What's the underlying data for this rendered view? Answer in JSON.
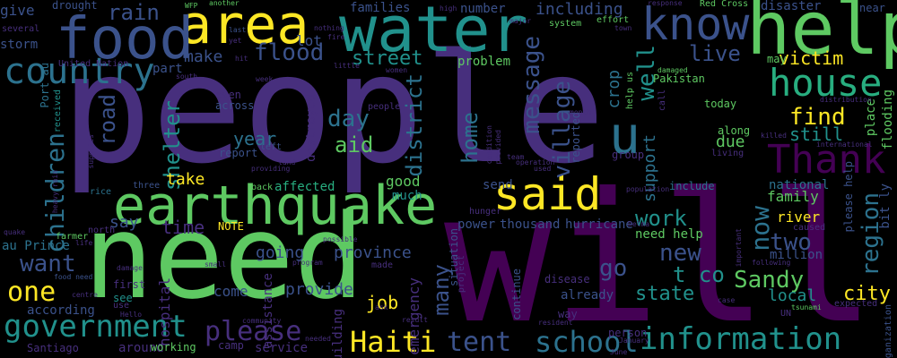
{
  "palette": {
    "background": "#000000",
    "purple_dark": "#440154",
    "indigo": "#472f7d",
    "blue": "#3b528b",
    "blue_teal": "#2c728e",
    "teal": "#21918c",
    "green_teal": "#28ae80",
    "green": "#5ec962",
    "yellow": "#fde725"
  },
  "words": [
    "people",
    "will",
    "need",
    "help",
    "water",
    "area",
    "food",
    "earthquake",
    "know",
    "said",
    "house",
    "Thank",
    "country",
    "u",
    "government",
    "information",
    "Haiti",
    "school",
    "tent",
    "please",
    "children",
    "one",
    "want",
    "flood",
    "message",
    "village",
    "well",
    "road",
    "street",
    "live",
    "home",
    "district",
    "day",
    "aid",
    "find",
    "victim",
    "shelter",
    "still",
    "year",
    "Sandy",
    "work",
    "now",
    "region",
    "city",
    "two",
    "new",
    "t co",
    "go",
    "state",
    "many",
    "support",
    "crop",
    "job",
    "provide",
    "hospital",
    "emergency",
    "going",
    "province",
    "time",
    "take",
    "say",
    "include",
    "due",
    "local",
    "river",
    "family",
    "national",
    "need help",
    "already",
    "thousand",
    "hurricane",
    "power",
    "good",
    "much",
    "affected",
    "destroyed",
    "rain",
    "give",
    "drought",
    "lot",
    "families",
    "number",
    "including",
    "disaster",
    "Red Cross",
    "near",
    "storm",
    "make",
    "part",
    "Port au",
    "United Nation",
    "Pakistan",
    "several",
    "WFP",
    "another",
    "problem",
    "system",
    "effort",
    "town",
    "damaged",
    "along",
    "flooding",
    "may",
    "today",
    "place",
    "help us",
    "call",
    "reported",
    "NOTE",
    "come",
    "see",
    "first",
    "around",
    "working",
    "service",
    "assistance",
    "according",
    "Santiago",
    "au Prince",
    "food need",
    "farmer",
    "life",
    "rice",
    "north",
    "three",
    "back",
    "bit ly",
    "organization",
    "expected",
    "week",
    "nothing",
    "fire",
    "hit",
    "last",
    "yet",
    "south",
    "little",
    "received",
    "supplies",
    "heavy rain",
    "across",
    "even",
    "report",
    "left",
    "land",
    "providing",
    "living",
    "killed",
    "international",
    "hunger",
    "send",
    "situation",
    "project",
    "continue",
    "building",
    "result",
    "people",
    "resident",
    "June",
    "camp",
    "community",
    "needed",
    "possible",
    "program",
    "small",
    "damage",
    "centre",
    "quake",
    "disease",
    "case",
    "following",
    "million",
    "caused",
    "tsunami",
    "UN",
    "important",
    "Delma",
    "population",
    "operation",
    "used",
    "condition",
    "provided",
    "month",
    "distribution",
    "group",
    "team",
    "women",
    "high",
    "response",
    "major",
    "ask",
    "made",
    "person",
    "way",
    "January",
    "Hello",
    "use",
    "please help"
  ]
}
